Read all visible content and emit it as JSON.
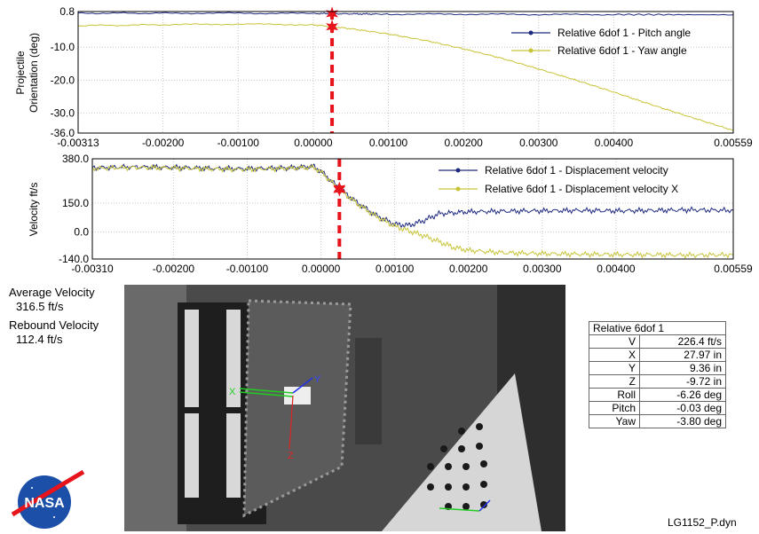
{
  "chart_data": [
    {
      "type": "line",
      "ylabel_lines": [
        "Projectile",
        "Orientation (deg)"
      ],
      "xlim": [
        -0.00313,
        0.00559
      ],
      "ylim": [
        -36.0,
        0.8
      ],
      "x_ticks": [
        "-0.00313",
        "-0.00200",
        "-0.00100",
        "0.00000",
        "0.00100",
        "0.00200",
        "0.00300",
        "0.00400",
        "0.00559"
      ],
      "x_tick_values": [
        -0.00313,
        -0.002,
        -0.001,
        0.0,
        0.001,
        0.002,
        0.003,
        0.004,
        0.00559
      ],
      "y_ticks": [
        "0.8",
        "-10.0",
        "-20.0",
        "-30.0",
        "-36.0"
      ],
      "y_tick_values": [
        0.8,
        -10.0,
        -20.0,
        -30.0,
        -36.0
      ],
      "marker_x": 0.00025,
      "series": [
        {
          "name": "Relative 6dof 1 - Pitch angle",
          "color": "#1f2a80",
          "x": [
            -0.00313,
            -0.002,
            -0.001,
            0.0,
            0.0005,
            0.001,
            0.002,
            0.003,
            0.004,
            0.00559
          ],
          "y": [
            0.3,
            0.3,
            0.3,
            0.2,
            0.1,
            0.0,
            0.0,
            -0.1,
            -0.1,
            -0.2
          ]
        },
        {
          "name": "Relative 6dof 1 - Yaw angle",
          "color": "#c8c43a",
          "x": [
            -0.00313,
            -0.002,
            -0.001,
            0.0,
            0.00025,
            0.0005,
            0.001,
            0.0015,
            0.002,
            0.0025,
            0.003,
            0.0035,
            0.004,
            0.0045,
            0.005,
            0.00559
          ],
          "y": [
            -3.5,
            -3.2,
            -3.0,
            -3.2,
            -3.8,
            -4.4,
            -6.0,
            -8.0,
            -10.5,
            -13.3,
            -16.6,
            -20.0,
            -23.6,
            -27.4,
            -31.0,
            -35.2
          ]
        }
      ]
    },
    {
      "type": "line",
      "ylabel_lines": [
        "Velocity ft/s"
      ],
      "xlim": [
        -0.0031,
        0.00559
      ],
      "ylim": [
        -140.0,
        380.0
      ],
      "x_ticks": [
        "-0.00310",
        "-0.00200",
        "-0.00100",
        "0.00000",
        "0.00100",
        "0.00200",
        "0.00300",
        "0.00400",
        "0.00559"
      ],
      "x_tick_values": [
        -0.0031,
        -0.002,
        -0.001,
        0.0,
        0.001,
        0.002,
        0.003,
        0.004,
        0.00559
      ],
      "y_ticks": [
        "380.0",
        "150.0",
        "0.0",
        "-140.0"
      ],
      "y_tick_values": [
        380.0,
        150.0,
        0.0,
        -140.0
      ],
      "marker_x": 0.00025,
      "series": [
        {
          "name": "Relative 6dof 1 - Displacement velocity",
          "color": "#1f2a80",
          "x": [
            -0.0031,
            -0.0025,
            -0.002,
            -0.0015,
            -0.001,
            -0.0005,
            -0.0001,
            0.0,
            0.00025,
            0.0005,
            0.00075,
            0.001,
            0.0012,
            0.0014,
            0.0016,
            0.002,
            0.0025,
            0.003,
            0.0035,
            0.004,
            0.0045,
            0.005,
            0.00559
          ],
          "y": [
            333,
            338,
            335,
            330,
            328,
            332,
            340,
            315,
            226,
            150,
            85,
            40,
            35,
            60,
            95,
            105,
            108,
            110,
            112,
            110,
            112,
            115,
            112
          ]
        },
        {
          "name": "Relative 6dof 1 - Displacement velocity X",
          "color": "#c8c43a",
          "x": [
            -0.0031,
            -0.0025,
            -0.002,
            -0.0015,
            -0.001,
            -0.0005,
            -0.0001,
            0.0,
            0.00025,
            0.0005,
            0.00075,
            0.001,
            0.0012,
            0.0014,
            0.0016,
            0.0018,
            0.002,
            0.0025,
            0.003,
            0.0035,
            0.004,
            0.0045,
            0.005,
            0.00559
          ],
          "y": [
            330,
            335,
            332,
            327,
            325,
            330,
            336,
            312,
            220,
            145,
            80,
            30,
            5,
            -20,
            -50,
            -80,
            -95,
            -108,
            -112,
            -115,
            -117,
            -118,
            -120,
            -118
          ]
        }
      ]
    }
  ],
  "info": {
    "avg_label": "Average Velocity",
    "avg_value": "316.5 ft/s",
    "reb_label": "Rebound Velocity",
    "reb_value": "112.4 ft/s"
  },
  "table": {
    "title": "Relative 6dof 1",
    "rows": [
      {
        "k": "V",
        "v": "226.4 ft/s"
      },
      {
        "k": "X",
        "v": "27.97 in"
      },
      {
        "k": "Y",
        "v": "9.36 in"
      },
      {
        "k": "Z",
        "v": "-9.72 in"
      },
      {
        "k": "Roll",
        "v": "-6.26 deg"
      },
      {
        "k": "Pitch",
        "v": "-0.03 deg"
      },
      {
        "k": "Yaw",
        "v": "-3.80 deg"
      }
    ]
  },
  "photo_axes": {
    "x": "X",
    "y": "Y",
    "z": "Z"
  },
  "logo_text": "NASA",
  "file_label": "LG1152_P.dyn",
  "colors": {
    "marker": "#e8141c",
    "grid": "#c8c8c8"
  }
}
